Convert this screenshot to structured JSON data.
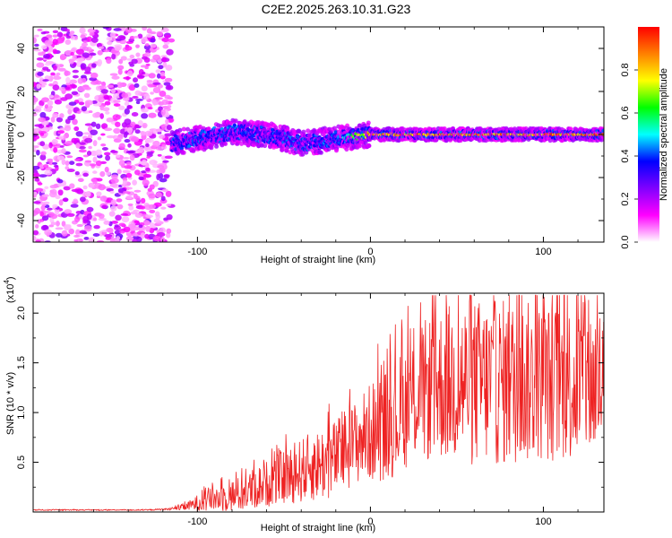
{
  "title": "C2E2.2025.263.10.31.G23",
  "chart_data": [
    {
      "type": "heatmap",
      "xlabel": "Height of straight line (km)",
      "ylabel": "Frequency (Hz)",
      "xlim": [
        -195,
        135
      ],
      "ylim": [
        -50,
        50
      ],
      "xticks": [
        -100,
        0,
        100
      ],
      "xtick_labels": [
        "-100",
        "0",
        "100"
      ],
      "yticks": [
        -40,
        -20,
        0,
        20,
        40
      ],
      "ytick_labels": [
        "-40",
        "-20",
        "0",
        "20",
        "40"
      ],
      "colorbar": {
        "label": "Normalized spectral amplitude",
        "range": [
          0.0,
          1.0
        ],
        "ticks": [
          0.0,
          0.2,
          0.4,
          0.6,
          0.8
        ],
        "tick_labels": [
          "0.0",
          "0.2",
          "0.4",
          "0.6",
          "0.8"
        ],
        "colormap": [
          "#ffffff",
          "#ff00ff",
          "#8000ff",
          "#0000ff",
          "#00ffff",
          "#00ff00",
          "#ffff00",
          "#ff8000",
          "#ff0000"
        ]
      },
      "ridge": {
        "x": [
          -115,
          -100,
          -80,
          -60,
          -40,
          -20,
          0,
          20,
          40,
          60,
          80,
          100,
          120,
          135
        ],
        "freq": [
          -4,
          -2,
          1,
          0,
          -4,
          -2,
          0,
          0,
          0,
          0,
          0,
          0,
          0,
          0
        ],
        "peak_amplitude": [
          0.35,
          0.35,
          0.4,
          0.35,
          0.35,
          0.4,
          0.9,
          0.95,
          0.95,
          0.95,
          0.95,
          0.95,
          0.95,
          0.95
        ]
      },
      "noise_region": {
        "x_from": -195,
        "x_to": -115,
        "amplitude": 0.15
      }
    },
    {
      "type": "line",
      "xlabel": "Height of straight line (km)",
      "ylabel": "SNR (10 * v/v)",
      "y_multiplier": "(x10",
      "y_multiplier_exp": "4",
      "y_multiplier_close": ")",
      "xlim": [
        -195,
        135
      ],
      "ylim": [
        0,
        2.2
      ],
      "xticks": [
        -100,
        0,
        100
      ],
      "xtick_labels": [
        "-100",
        "0",
        "100"
      ],
      "yticks": [
        0.5,
        1.0,
        1.5,
        2.0
      ],
      "ytick_labels": [
        "0.5",
        "1.0",
        "1.5",
        "2.0"
      ],
      "line_color": "#ee2222",
      "series": [
        {
          "name": "SNR",
          "x": [
            -195,
            -160,
            -130,
            -115,
            -105,
            -95,
            -85,
            -75,
            -65,
            -55,
            -45,
            -35,
            -25,
            -15,
            -5,
            5,
            15,
            25,
            35,
            45,
            55,
            65,
            75,
            85,
            95,
            105,
            115,
            125,
            135
          ],
          "mean": [
            0.02,
            0.02,
            0.02,
            0.03,
            0.06,
            0.12,
            0.15,
            0.18,
            0.25,
            0.32,
            0.38,
            0.45,
            0.5,
            0.6,
            0.75,
            0.85,
            0.95,
            1.15,
            1.25,
            1.3,
            1.3,
            1.3,
            1.3,
            1.3,
            1.3,
            1.3,
            1.3,
            1.3,
            1.3
          ],
          "amp": [
            0.005,
            0.005,
            0.005,
            0.01,
            0.05,
            0.12,
            0.15,
            0.18,
            0.22,
            0.25,
            0.3,
            0.35,
            0.38,
            0.4,
            0.45,
            0.55,
            0.6,
            0.65,
            0.75,
            0.8,
            0.85,
            0.85,
            0.85,
            0.85,
            0.8,
            0.8,
            0.8,
            0.8,
            0.8
          ]
        }
      ]
    }
  ]
}
